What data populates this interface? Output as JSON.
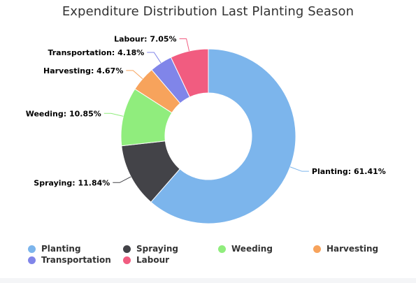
{
  "chart_data": {
    "type": "pie",
    "title": "Expenditure Distribution Last Planting Season",
    "donut": true,
    "slices": [
      {
        "name": "Planting",
        "value": 61.41,
        "label": "Planting: 61.41%",
        "color": "#7cb5ec"
      },
      {
        "name": "Spraying",
        "value": 11.84,
        "label": "Spraying: 11.84%",
        "color": "#434348"
      },
      {
        "name": "Weeding",
        "value": 10.85,
        "label": "Weeding: 10.85%",
        "color": "#90ed7d"
      },
      {
        "name": "Harvesting",
        "value": 4.67,
        "label": "Harvesting: 4.67%",
        "color": "#f7a35c"
      },
      {
        "name": "Transportation",
        "value": 4.18,
        "label": "Transportation: 4.18%",
        "color": "#8085e9"
      },
      {
        "name": "Labour",
        "value": 7.05,
        "label": "Labour: 7.05%",
        "color": "#f15c80"
      }
    ],
    "legend_position": "bottom"
  }
}
